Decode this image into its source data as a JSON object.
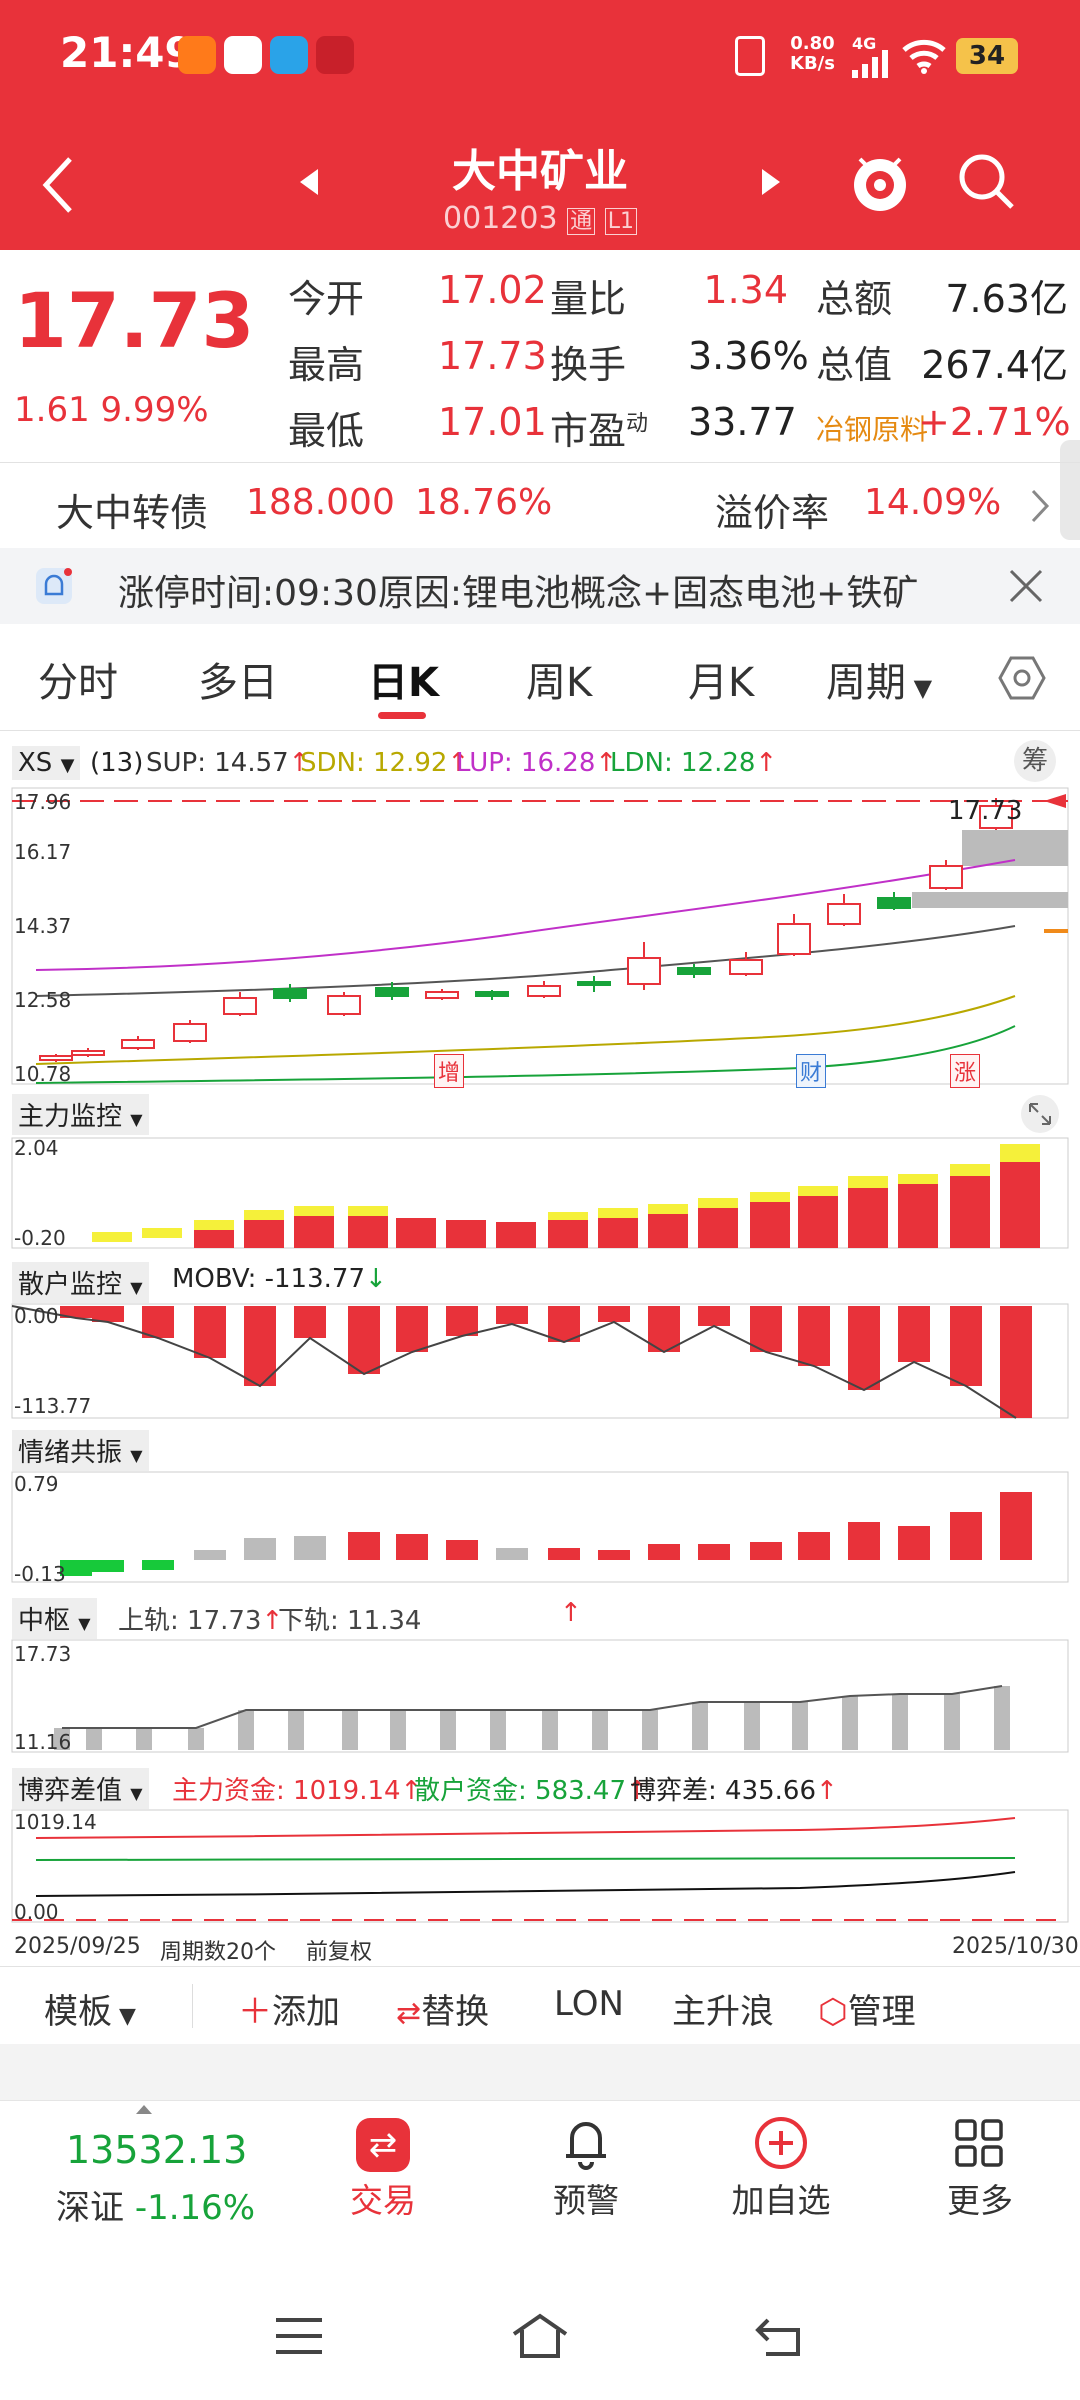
{
  "status_bar": {
    "time": "21:49",
    "net_speed_top": "0.80",
    "net_speed_unit": "KB/s",
    "signal": "4G",
    "battery": "34"
  },
  "header": {
    "title": "大中矿业",
    "code": "001203",
    "tag1": "通",
    "tag2": "L1"
  },
  "quote": {
    "price": "17.73",
    "change": "1.61",
    "change_pct": "9.99%",
    "rows": [
      [
        {
          "label": "今开",
          "value": "17.02"
        },
        {
          "label": "量比",
          "value": "1.34"
        },
        {
          "label": "总额",
          "value": "7.63亿"
        }
      ],
      [
        {
          "label": "最高",
          "value": "17.73"
        },
        {
          "label": "换手",
          "value": "3.36%"
        },
        {
          "label": "总值",
          "value": "267.4亿"
        }
      ],
      [
        {
          "label": "最低",
          "value": "17.01"
        },
        {
          "label": "市盈",
          "value": "33.77",
          "sup": "动"
        },
        {
          "label": "冶钢原料",
          "value": "+2.71%"
        }
      ]
    ]
  },
  "bond": {
    "name": "大中转债",
    "price": "188.000",
    "pct": "18.76%",
    "premium_label": "溢价率",
    "premium": "14.09%"
  },
  "notice": {
    "text": "涨停时间:09:30原因:锂电池概念+固态电池+铁矿"
  },
  "tabs": [
    "分时",
    "多日",
    "日K",
    "周K",
    "月K",
    "周期"
  ],
  "main_chart": {
    "indicator": "XS",
    "params": "(13)",
    "sup": "SUP: 14.57",
    "sdn": "SDN: 12.92",
    "lup": "LUP: 16.28",
    "ldn": "LDN: 12.28",
    "right_btn": "筹",
    "y_labels": [
      "17.96",
      "16.17",
      "14.37",
      "12.58",
      "10.78"
    ],
    "last_price_label": "17.73",
    "markers": [
      "增",
      "财",
      "涨"
    ]
  },
  "panels": {
    "zhuli": {
      "label": "主力监控",
      "y_top": "2.04",
      "y_bottom": "-0.20"
    },
    "sanhu": {
      "label": "散户监控",
      "text": "MOBV: -113.77",
      "y_top": "0.00",
      "y_bottom": "-113.77"
    },
    "qingxu": {
      "label": "情绪共振",
      "y_top": "0.79",
      "y_bottom": "-0.13"
    },
    "zhongshu": {
      "label": "中枢",
      "upper": "上轨: 17.73",
      "lower": "下轨: 11.34",
      "y_top": "17.73",
      "y_bottom": "11.16"
    },
    "boyi": {
      "label": "博弈差值",
      "main": "主力资金: 1019.14",
      "retail": "散户资金: 583.47",
      "diff": "博弈差: 435.66",
      "y_top": "1019.14",
      "y_bottom": "0.00"
    }
  },
  "x_axis": {
    "start": "2025/09/25",
    "cycles": "周期数20个",
    "adjust": "前复权",
    "end": "2025/10/30"
  },
  "toolbar": {
    "template": "模板",
    "add": "添加",
    "replace": "替换",
    "lon": "LON",
    "trend": "主升浪",
    "manage": "管理"
  },
  "bottom": {
    "index_value": "13532.13",
    "index_name": "深证",
    "index_pct": "-1.16%",
    "trade": "交易",
    "alert": "预警",
    "add_fav": "加自选",
    "more": "更多"
  },
  "colors": {
    "brand": "#e8323a",
    "up": "#e8323a",
    "down": "#17a33a"
  }
}
